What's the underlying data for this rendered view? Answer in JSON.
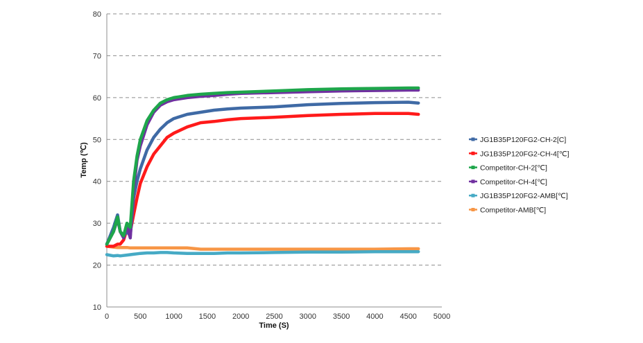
{
  "colors": {
    "s1": "#3f6aa5",
    "s2": "#ff1a1a",
    "s3": "#1ea64b",
    "s4": "#7030a0",
    "s5": "#46aac5",
    "s6": "#f79646"
  },
  "chart_data": {
    "type": "line",
    "title": "",
    "xlabel": "Time (S)",
    "ylabel": "Temp (℃)",
    "xlim": [
      0,
      5000
    ],
    "ylim": [
      10,
      80
    ],
    "x_ticks": [
      "0",
      "500",
      "1000",
      "1500",
      "2000",
      "2500",
      "3000",
      "3500",
      "4000",
      "4500",
      "5000"
    ],
    "y_ticks": [
      "10",
      "20",
      "30",
      "40",
      "50",
      "60",
      "70",
      "80"
    ],
    "grid": "horizontal dashed",
    "legend_position": "right",
    "x": [
      0,
      100,
      160,
      200,
      250,
      300,
      350,
      400,
      450,
      500,
      600,
      700,
      800,
      900,
      1000,
      1200,
      1400,
      1600,
      1800,
      2000,
      2500,
      3000,
      3500,
      4000,
      4500,
      4650
    ],
    "series": [
      {
        "name": "JG1B35P120FG2-CH-2[C]",
        "color_key": "s1",
        "values": [
          25,
          29,
          32,
          28,
          27,
          28,
          27,
          36,
          40,
          43,
          47.5,
          50.5,
          52.5,
          54,
          55,
          56,
          56.5,
          57,
          57.3,
          57.5,
          57.8,
          58.3,
          58.6,
          58.8,
          58.9,
          58.7
        ]
      },
      {
        "name": "JG1B35P120FG2-CH-4[℃]",
        "color_key": "s2",
        "values": [
          24.5,
          24.5,
          25,
          25,
          26,
          28.5,
          28,
          32,
          36,
          39.5,
          43.5,
          46.5,
          48.5,
          50.5,
          51.5,
          53,
          54,
          54.3,
          54.7,
          55,
          55.3,
          55.7,
          56,
          56.2,
          56.2,
          56
        ]
      },
      {
        "name": "Competitor-CH-2[℃]",
        "color_key": "s3",
        "values": [
          25,
          28,
          31.5,
          28,
          27,
          30,
          29,
          40,
          46,
          50,
          54.5,
          57,
          58.7,
          59.5,
          60,
          60.5,
          60.8,
          61,
          61.2,
          61.3,
          61.6,
          61.9,
          62.1,
          62.2,
          62.3,
          62.3
        ]
      },
      {
        "name": "Competitor-CH-4[℃]",
        "color_key": "s4",
        "values": [
          25,
          28,
          31,
          28,
          26.5,
          29.5,
          26.5,
          38,
          45,
          48.5,
          53.5,
          56.5,
          58.2,
          59,
          59.5,
          60,
          60.3,
          60.5,
          60.8,
          61,
          61.2,
          61.4,
          61.6,
          61.7,
          61.8,
          61.8
        ]
      },
      {
        "name": "JG1B35P120FG2-AMB[℃]",
        "color_key": "s5",
        "values": [
          22.5,
          22.2,
          22.3,
          22.2,
          22.3,
          22.4,
          22.5,
          22.6,
          22.7,
          22.8,
          22.9,
          22.9,
          23,
          23,
          22.9,
          22.8,
          22.8,
          22.8,
          22.9,
          22.9,
          23,
          23.1,
          23.1,
          23.2,
          23.2,
          23.2
        ]
      },
      {
        "name": "Competitor-AMB[℃]",
        "color_key": "s6",
        "values": [
          24.5,
          24.3,
          24.2,
          24.2,
          24.2,
          24.2,
          24.1,
          24.1,
          24.1,
          24.1,
          24.1,
          24.1,
          24.1,
          24.1,
          24.1,
          24.1,
          23.8,
          23.8,
          23.8,
          23.8,
          23.8,
          23.8,
          23.8,
          23.8,
          23.9,
          23.9
        ]
      }
    ]
  }
}
